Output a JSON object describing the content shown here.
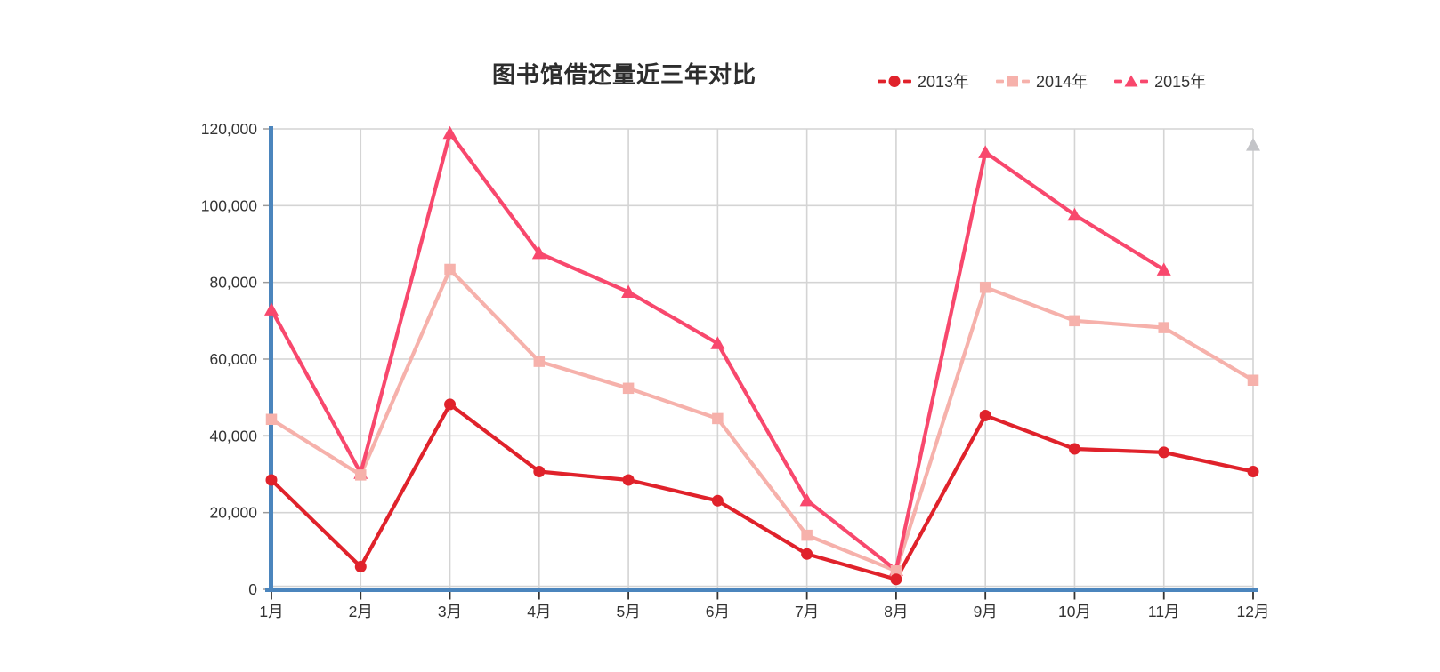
{
  "legend": {
    "items": [
      {
        "label": "2013年",
        "marker": "circle",
        "color": "#e0222b"
      },
      {
        "label": "2014年",
        "marker": "square",
        "color": "#f6b1ab"
      },
      {
        "label": "2015年",
        "marker": "triangle",
        "color": "#f8486d"
      }
    ]
  },
  "chart_data": {
    "type": "line",
    "title": "图书馆借还量近三年对比",
    "categories": [
      "1月",
      "2月",
      "3月",
      "4月",
      "5月",
      "6月",
      "7月",
      "8月",
      "9月",
      "10月",
      "11月",
      "12月"
    ],
    "series": [
      {
        "name": "2013年",
        "marker": "circle",
        "color": "#e0222b",
        "values": [
          28500,
          5900,
          48200,
          30700,
          28500,
          23100,
          9200,
          2600,
          45300,
          36600,
          35700,
          30700
        ]
      },
      {
        "name": "2014年",
        "marker": "square",
        "color": "#f6b1ab",
        "values": [
          44300,
          29800,
          83400,
          59400,
          52400,
          44500,
          14100,
          4800,
          78700,
          70000,
          68200,
          54500
        ]
      },
      {
        "name": "2015年",
        "marker": "triangle",
        "color": "#f8486d",
        "values": [
          72900,
          30300,
          118900,
          87600,
          77500,
          64100,
          23200,
          5000,
          113900,
          97600,
          83300,
          null
        ]
      }
    ],
    "extra_points": [
      {
        "category": "12月",
        "value": 115800,
        "marker": "triangle",
        "color": "#c3c4c8"
      }
    ],
    "xlabel": "",
    "ylabel": "",
    "ylim": [
      0,
      120000
    ],
    "y_ticks": [
      {
        "value": 0,
        "label": "0"
      },
      {
        "value": 20000,
        "label": "20,000"
      },
      {
        "value": 40000,
        "label": "40,000"
      },
      {
        "value": 60000,
        "label": "60,000"
      },
      {
        "value": 80000,
        "label": "80,000"
      },
      {
        "value": 100000,
        "label": "100,000"
      },
      {
        "value": 120000,
        "label": "120,000"
      }
    ],
    "grid": true,
    "legend_position": "top-right",
    "colors": {
      "axis_line": "#4b85bd",
      "grid_line": "#d4d4d4",
      "x_tick": "#333333",
      "y_tick": "#9a9a9a",
      "axis_label": "#333333",
      "title": "#2d2d2d"
    }
  }
}
